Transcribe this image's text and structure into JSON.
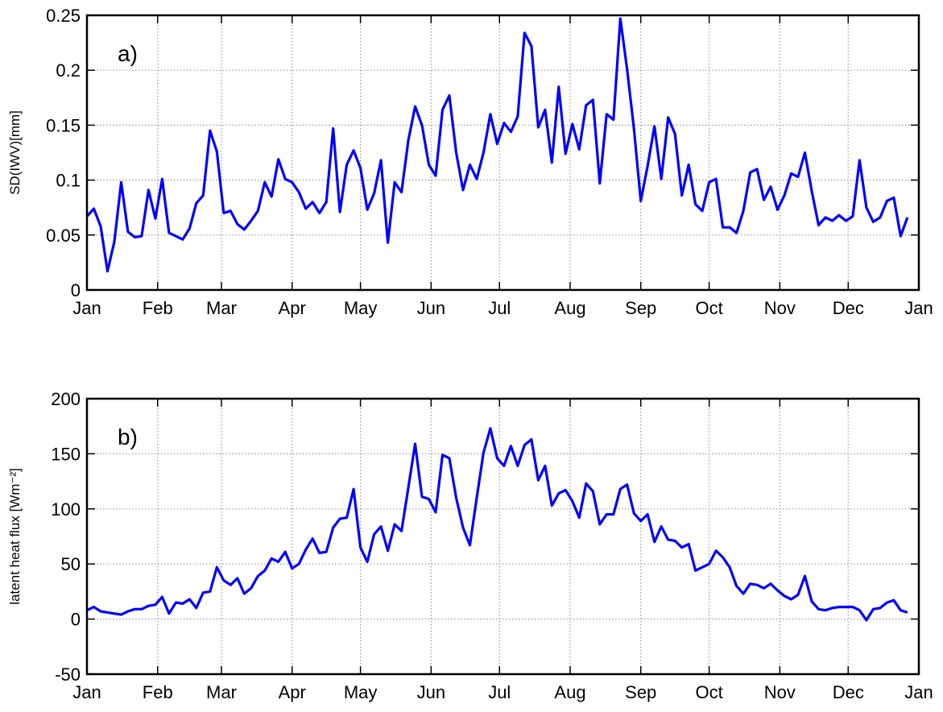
{
  "chart_data": [
    {
      "type": "line",
      "ylabel": "SD(IWV)[mm]",
      "annotation": "a)",
      "x": [
        0,
        3,
        6,
        9,
        12,
        15,
        18,
        21,
        24,
        27,
        30,
        33,
        36,
        39,
        42,
        45,
        48,
        51,
        54,
        57,
        60,
        63,
        66,
        69,
        72,
        75,
        78,
        81,
        84,
        87,
        90,
        93,
        96,
        99,
        102,
        105,
        108,
        111,
        114,
        117,
        120,
        123,
        126,
        129,
        132,
        135,
        138,
        141,
        144,
        147,
        150,
        153,
        156,
        159,
        162,
        165,
        168,
        171,
        174,
        177,
        180,
        183,
        186,
        189,
        192,
        195,
        198,
        201,
        204,
        207,
        210,
        213,
        216,
        219,
        222,
        225,
        228,
        231,
        234,
        237,
        240,
        243,
        246,
        249,
        252,
        255,
        258,
        261,
        264,
        267,
        270,
        273,
        276,
        279,
        282,
        285,
        288,
        291,
        294,
        297,
        300,
        303,
        306,
        309,
        312,
        315,
        318,
        321,
        324,
        327,
        330,
        333,
        336,
        339,
        342,
        345,
        348,
        351,
        354,
        357,
        360
      ],
      "series": [
        {
          "name": "SD(IWV)",
          "color": "#0000ff",
          "values": [
            0.067,
            0.074,
            0.058,
            0.017,
            0.044,
            0.098,
            0.053,
            0.048,
            0.049,
            0.091,
            0.065,
            0.101,
            0.052,
            0.049,
            0.046,
            0.056,
            0.079,
            0.086,
            0.145,
            0.126,
            0.07,
            0.072,
            0.06,
            0.055,
            0.063,
            0.072,
            0.098,
            0.085,
            0.119,
            0.101,
            0.098,
            0.089,
            0.074,
            0.08,
            0.07,
            0.08,
            0.147,
            0.071,
            0.114,
            0.127,
            0.111,
            0.073,
            0.088,
            0.118,
            0.043,
            0.098,
            0.089,
            0.136,
            0.167,
            0.15,
            0.114,
            0.104,
            0.164,
            0.177,
            0.125,
            0.091,
            0.114,
            0.101,
            0.125,
            0.16,
            0.133,
            0.152,
            0.144,
            0.158,
            0.234,
            0.222,
            0.148,
            0.164,
            0.116,
            0.185,
            0.124,
            0.151,
            0.128,
            0.168,
            0.173,
            0.097,
            0.16,
            0.155,
            0.247,
            0.201,
            0.147,
            0.081,
            0.113,
            0.149,
            0.101,
            0.157,
            0.142,
            0.086,
            0.114,
            0.078,
            0.072,
            0.098,
            0.101,
            0.057,
            0.057,
            0.052,
            0.072,
            0.107,
            0.11,
            0.082,
            0.094,
            0.073,
            0.086,
            0.106,
            0.103,
            0.125,
            0.09,
            0.059,
            0.066,
            0.063,
            0.068,
            0.063,
            0.067,
            0.118,
            0.075,
            0.062,
            0.066,
            0.081,
            0.084,
            0.049,
            0.066
          ]
        }
      ],
      "xlim": [
        0,
        365
      ],
      "xticks": [
        {
          "value": 0,
          "label": "Jan"
        },
        {
          "value": 31,
          "label": "Feb"
        },
        {
          "value": 59,
          "label": "Mar"
        },
        {
          "value": 90,
          "label": "Apr"
        },
        {
          "value": 120,
          "label": "May"
        },
        {
          "value": 151,
          "label": "Jun"
        },
        {
          "value": 181,
          "label": "Jul"
        },
        {
          "value": 212,
          "label": "Aug"
        },
        {
          "value": 243,
          "label": "Sep"
        },
        {
          "value": 273,
          "label": "Oct"
        },
        {
          "value": 304,
          "label": "Nov"
        },
        {
          "value": 334,
          "label": "Dec"
        },
        {
          "value": 365,
          "label": "Jan"
        }
      ],
      "ylim": [
        0,
        0.25
      ],
      "yticks": [
        0,
        0.05,
        0.1,
        0.15,
        0.2,
        0.25
      ],
      "grid": true
    },
    {
      "type": "line",
      "ylabel": "latent heat flux [Wm⁻²]",
      "annotation": "b)",
      "x": [
        0,
        3,
        6,
        9,
        12,
        15,
        18,
        21,
        24,
        27,
        30,
        33,
        36,
        39,
        42,
        45,
        48,
        51,
        54,
        57,
        60,
        63,
        66,
        69,
        72,
        75,
        78,
        81,
        84,
        87,
        90,
        93,
        96,
        99,
        102,
        105,
        108,
        111,
        114,
        117,
        120,
        123,
        126,
        129,
        132,
        135,
        138,
        141,
        144,
        147,
        150,
        153,
        156,
        159,
        162,
        165,
        168,
        171,
        174,
        177,
        180,
        183,
        186,
        189,
        192,
        195,
        198,
        201,
        204,
        207,
        210,
        213,
        216,
        219,
        222,
        225,
        228,
        231,
        234,
        237,
        240,
        243,
        246,
        249,
        252,
        255,
        258,
        261,
        264,
        267,
        270,
        273,
        276,
        279,
        282,
        285,
        288,
        291,
        294,
        297,
        300,
        303,
        306,
        309,
        312,
        315,
        318,
        321,
        324,
        327,
        330,
        333,
        336,
        339,
        342,
        345,
        348,
        351,
        354,
        357,
        360
      ],
      "series": [
        {
          "name": "latent heat flux",
          "color": "#0000ff",
          "values": [
            8,
            11,
            7,
            6,
            5,
            4,
            7,
            9,
            9,
            12,
            13,
            20,
            5,
            15,
            14,
            18,
            10,
            24,
            25,
            47,
            35,
            31,
            37,
            23,
            28,
            39,
            44,
            55,
            52,
            61,
            46,
            50,
            63,
            73,
            60,
            61,
            83,
            91,
            92,
            118,
            65,
            52,
            77,
            84,
            62,
            86,
            80,
            119,
            159,
            111,
            109,
            97,
            149,
            146,
            110,
            83,
            67,
            110,
            151,
            173,
            146,
            139,
            157,
            139,
            158,
            163,
            126,
            139,
            103,
            114,
            117,
            107,
            92,
            123,
            116,
            86,
            95,
            95,
            118,
            122,
            96,
            89,
            95,
            70,
            84,
            72,
            71,
            65,
            68,
            44,
            47,
            50,
            62,
            56,
            47,
            30,
            23,
            32,
            31,
            28,
            32,
            26,
            21,
            18,
            22,
            39,
            16,
            9,
            8,
            10,
            11,
            11,
            11,
            8,
            -1,
            9,
            10,
            15,
            17,
            8,
            6
          ]
        }
      ],
      "xlim": [
        0,
        365
      ],
      "xticks": [
        {
          "value": 0,
          "label": "Jan"
        },
        {
          "value": 31,
          "label": "Feb"
        },
        {
          "value": 59,
          "label": "Mar"
        },
        {
          "value": 90,
          "label": "Apr"
        },
        {
          "value": 120,
          "label": "May"
        },
        {
          "value": 151,
          "label": "Jun"
        },
        {
          "value": 181,
          "label": "Jul"
        },
        {
          "value": 212,
          "label": "Aug"
        },
        {
          "value": 243,
          "label": "Sep"
        },
        {
          "value": 273,
          "label": "Oct"
        },
        {
          "value": 304,
          "label": "Nov"
        },
        {
          "value": 334,
          "label": "Dec"
        },
        {
          "value": 365,
          "label": "Jan"
        }
      ],
      "ylim": [
        -50,
        200
      ],
      "yticks": [
        -50,
        0,
        50,
        100,
        150,
        200
      ],
      "grid": true
    }
  ]
}
